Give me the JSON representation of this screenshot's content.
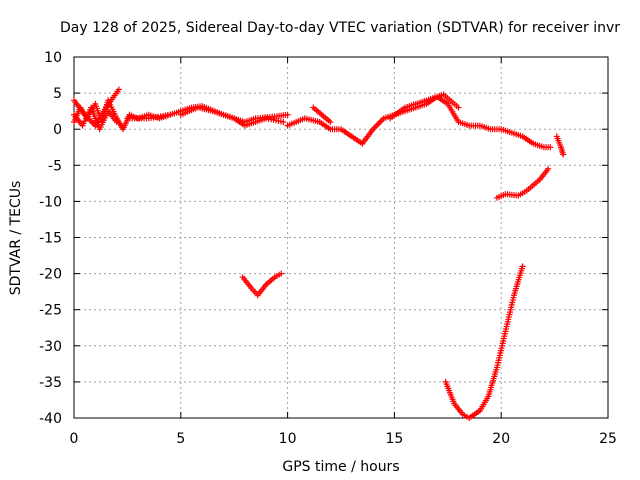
{
  "chart_data": {
    "type": "scatter",
    "title": "Day 128 of 2025, Sidereal Day-to-day VTEC variation (SDTVAR) for receiver invr",
    "xlabel": "GPS time / hours",
    "ylabel": "SDTVAR / TECUs",
    "xlim": [
      0,
      25
    ],
    "ylim": [
      -40,
      10
    ],
    "xticks": [
      0,
      5,
      10,
      15,
      20,
      25
    ],
    "yticks": [
      10,
      5,
      0,
      -5,
      -10,
      -15,
      -20,
      -25,
      -30,
      -35,
      -40
    ],
    "grid": true,
    "marker": "plus",
    "color": "#ff0000",
    "series": [
      {
        "name": "segment-1",
        "points": [
          [
            0,
            1
          ],
          [
            0.3,
            3
          ],
          [
            0.6,
            1.5
          ],
          [
            1.0,
            3.5
          ],
          [
            1.3,
            1
          ],
          [
            1.6,
            4
          ],
          [
            2.0,
            1.5
          ],
          [
            2.3,
            0
          ],
          [
            2.6,
            2
          ],
          [
            3.0,
            1.5
          ],
          [
            3.5,
            2
          ],
          [
            4.0,
            1.5
          ],
          [
            4.5,
            2
          ]
        ]
      },
      {
        "name": "segment-2",
        "points": [
          [
            0,
            2
          ],
          [
            0.4,
            0.5
          ],
          [
            0.8,
            3
          ],
          [
            1.2,
            0
          ],
          [
            1.6,
            2.5
          ],
          [
            2.0,
            1
          ]
        ]
      },
      {
        "name": "segment-3",
        "points": [
          [
            0,
            4
          ],
          [
            0.5,
            2
          ],
          [
            1.0,
            0.5
          ],
          [
            1.5,
            3
          ],
          [
            2.1,
            5.5
          ]
        ]
      },
      {
        "name": "segment-4",
        "points": [
          [
            2.5,
            1.5
          ],
          [
            3.5,
            1.5
          ],
          [
            4.5,
            2
          ],
          [
            5.5,
            3
          ],
          [
            6.0,
            3.2
          ],
          [
            7.0,
            2
          ],
          [
            8.0,
            1
          ],
          [
            8.5,
            1.5
          ],
          [
            9.5,
            1.8
          ],
          [
            10,
            2
          ]
        ]
      },
      {
        "name": "segment-5",
        "points": [
          [
            5.0,
            2
          ],
          [
            5.8,
            3
          ],
          [
            6.5,
            2.5
          ],
          [
            7.5,
            1.5
          ],
          [
            8.0,
            0.5
          ],
          [
            9.0,
            1.5
          ],
          [
            9.8,
            1
          ]
        ]
      },
      {
        "name": "segment-6",
        "points": [
          [
            10,
            0.5
          ],
          [
            10.8,
            1.5
          ],
          [
            11.5,
            1
          ],
          [
            12.0,
            0
          ],
          [
            12.5,
            0
          ],
          [
            13.0,
            -1
          ],
          [
            13.5,
            -2
          ],
          [
            14.0,
            0
          ],
          [
            14.5,
            1.5
          ],
          [
            15.0,
            2
          ],
          [
            15.5,
            2.5
          ],
          [
            16.0,
            3
          ],
          [
            16.5,
            3.5
          ],
          [
            17.0,
            4.5
          ],
          [
            17.5,
            3.5
          ],
          [
            18.0,
            1
          ],
          [
            18.5,
            0.5
          ],
          [
            19.0,
            0.5
          ],
          [
            19.5,
            0
          ],
          [
            20.0,
            0
          ],
          [
            20.5,
            -0.5
          ],
          [
            21.0,
            -1
          ],
          [
            21.5,
            -2
          ],
          [
            22.0,
            -2.5
          ],
          [
            22.3,
            -2.5
          ]
        ]
      },
      {
        "name": "segment-7",
        "points": [
          [
            11.2,
            3
          ],
          [
            11.6,
            2
          ],
          [
            12.0,
            1
          ]
        ]
      },
      {
        "name": "segment-8",
        "points": [
          [
            14.8,
            1.5
          ],
          [
            15.5,
            3
          ],
          [
            16.0,
            3.5
          ],
          [
            16.5,
            4
          ],
          [
            17.3,
            4.8
          ],
          [
            18.0,
            3
          ]
        ]
      },
      {
        "name": "segment-9",
        "points": [
          [
            22.6,
            -1
          ],
          [
            22.8,
            -2.5
          ],
          [
            22.9,
            -3.5
          ]
        ]
      },
      {
        "name": "segment-10",
        "points": [
          [
            19.8,
            -9.5
          ],
          [
            20.2,
            -9
          ],
          [
            20.8,
            -9.2
          ],
          [
            21.2,
            -8.5
          ],
          [
            21.8,
            -7
          ],
          [
            22.2,
            -5.5
          ]
        ]
      },
      {
        "name": "segment-11",
        "points": [
          [
            7.9,
            -20.5
          ],
          [
            8.3,
            -22
          ],
          [
            8.6,
            -23
          ],
          [
            9.0,
            -21.5
          ],
          [
            9.4,
            -20.5
          ],
          [
            9.7,
            -20
          ]
        ]
      },
      {
        "name": "segment-12",
        "points": [
          [
            17.4,
            -35
          ],
          [
            17.8,
            -38
          ],
          [
            18.2,
            -39.5
          ],
          [
            18.5,
            -40
          ],
          [
            19.0,
            -39
          ],
          [
            19.4,
            -37
          ],
          [
            19.8,
            -33
          ],
          [
            20.2,
            -28
          ],
          [
            20.6,
            -23
          ],
          [
            21.0,
            -19
          ]
        ]
      }
    ]
  }
}
